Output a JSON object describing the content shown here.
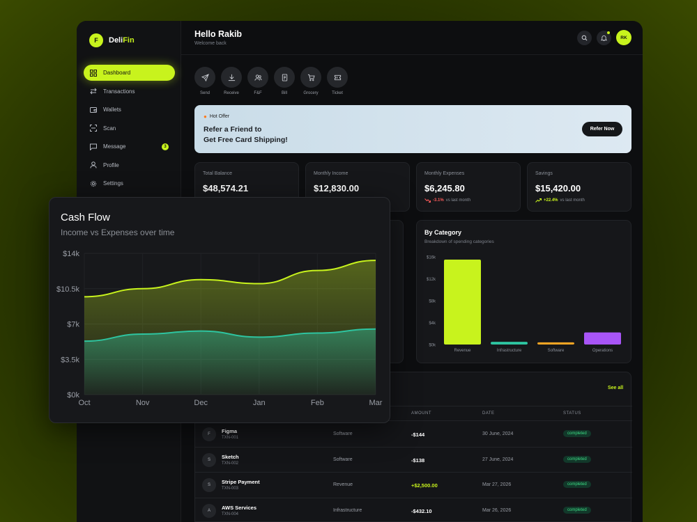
{
  "brand": {
    "logo_letter": "F",
    "name_part1": "Deli",
    "name_part2": "Fin",
    "accent": "#c8f31d"
  },
  "sidebar": {
    "items": [
      {
        "label": "Dashboard",
        "icon": "grid-icon",
        "active": true
      },
      {
        "label": "Transactions",
        "icon": "arrows-icon"
      },
      {
        "label": "Wallets",
        "icon": "wallet-icon"
      },
      {
        "label": "Scan",
        "icon": "scan-icon"
      },
      {
        "label": "Message",
        "icon": "message-icon",
        "badge": "3"
      },
      {
        "label": "Profile",
        "icon": "user-icon"
      },
      {
        "label": "Settings",
        "icon": "gear-icon"
      }
    ]
  },
  "header": {
    "greeting": "Hello Rakib",
    "subtitle": "Welcome back",
    "avatar_initials": "RK"
  },
  "quick_actions": [
    {
      "label": "Send",
      "icon": "send-icon"
    },
    {
      "label": "Receive",
      "icon": "download-icon"
    },
    {
      "label": "F&F",
      "icon": "users-icon"
    },
    {
      "label": "Bill",
      "icon": "bill-icon"
    },
    {
      "label": "Grocery",
      "icon": "cart-icon"
    },
    {
      "label": "Ticket",
      "icon": "ticket-icon"
    }
  ],
  "offer": {
    "tag": "Hot Offer",
    "line1": "Refer a Friend to",
    "line2": "Get Free Card Shipping!",
    "button": "Refer Now"
  },
  "stats": [
    {
      "label": "Total Balance",
      "value": "$48,574.21"
    },
    {
      "label": "Monthly Income",
      "value": "$12,830.00"
    },
    {
      "label": "Monthly Expenses",
      "value": "$6,245.80",
      "trend": "-3.1%",
      "trend_text": "vs last month",
      "direction": "down"
    },
    {
      "label": "Savings",
      "value": "$15,420.00",
      "trend": "+22.4%",
      "trend_text": "vs last month",
      "direction": "up"
    }
  ],
  "transactions": {
    "see_all": "See all",
    "headers": [
      "AMOUNT",
      "DATE",
      "STATUS"
    ],
    "rows": [
      {
        "initial": "F",
        "name": "Figma",
        "id": "TXN-001",
        "category": "Software",
        "amount": "-$144",
        "date": "30 June, 2024",
        "status": "completed"
      },
      {
        "initial": "S",
        "name": "Sketch",
        "id": "TXN-002",
        "category": "Software",
        "amount": "-$138",
        "date": "27 June, 2024",
        "status": "completed"
      },
      {
        "initial": "S",
        "name": "Stripe Payment",
        "id": "TXN-003",
        "category": "Revenue",
        "amount": "+$2,500.00",
        "date": "Mar 27, 2026",
        "status": "completed"
      },
      {
        "initial": "A",
        "name": "AWS Services",
        "id": "TXN-004",
        "category": "Infrastructure",
        "amount": "-$432.10",
        "date": "Mar 26, 2026",
        "status": "completed"
      }
    ]
  },
  "chart_data": [
    {
      "type": "area",
      "title": "Cash Flow",
      "subtitle": "Income vs Expenses over time",
      "x": [
        "Oct",
        "Nov",
        "Dec",
        "Jan",
        "Feb",
        "Mar"
      ],
      "yticks": [
        "$0k",
        "$3.5k",
        "$7k",
        "$10.5k",
        "$14k"
      ],
      "ylim": [
        0,
        14000
      ],
      "series": [
        {
          "values": [
            9700,
            10500,
            11400,
            11000,
            12300,
            13300
          ],
          "color": "#c8f31d"
        },
        {
          "values": [
            5300,
            6000,
            6300,
            5700,
            6100,
            6500
          ],
          "color": "#2ec4a0"
        }
      ]
    },
    {
      "type": "bar",
      "title": "By Category",
      "subtitle": "Breakdown of spending categories",
      "categories": [
        "Revenue",
        "Infrastructure",
        "Software",
        "Operations"
      ],
      "values": [
        15500,
        500,
        400,
        2200
      ],
      "colors": [
        "#c8f31d",
        "#2ec4a0",
        "#f5a524",
        "#a855f7"
      ],
      "yticks": [
        "$0k",
        "$4k",
        "$8k",
        "$12k",
        "$16k"
      ],
      "ylim": [
        0,
        16000
      ]
    }
  ]
}
